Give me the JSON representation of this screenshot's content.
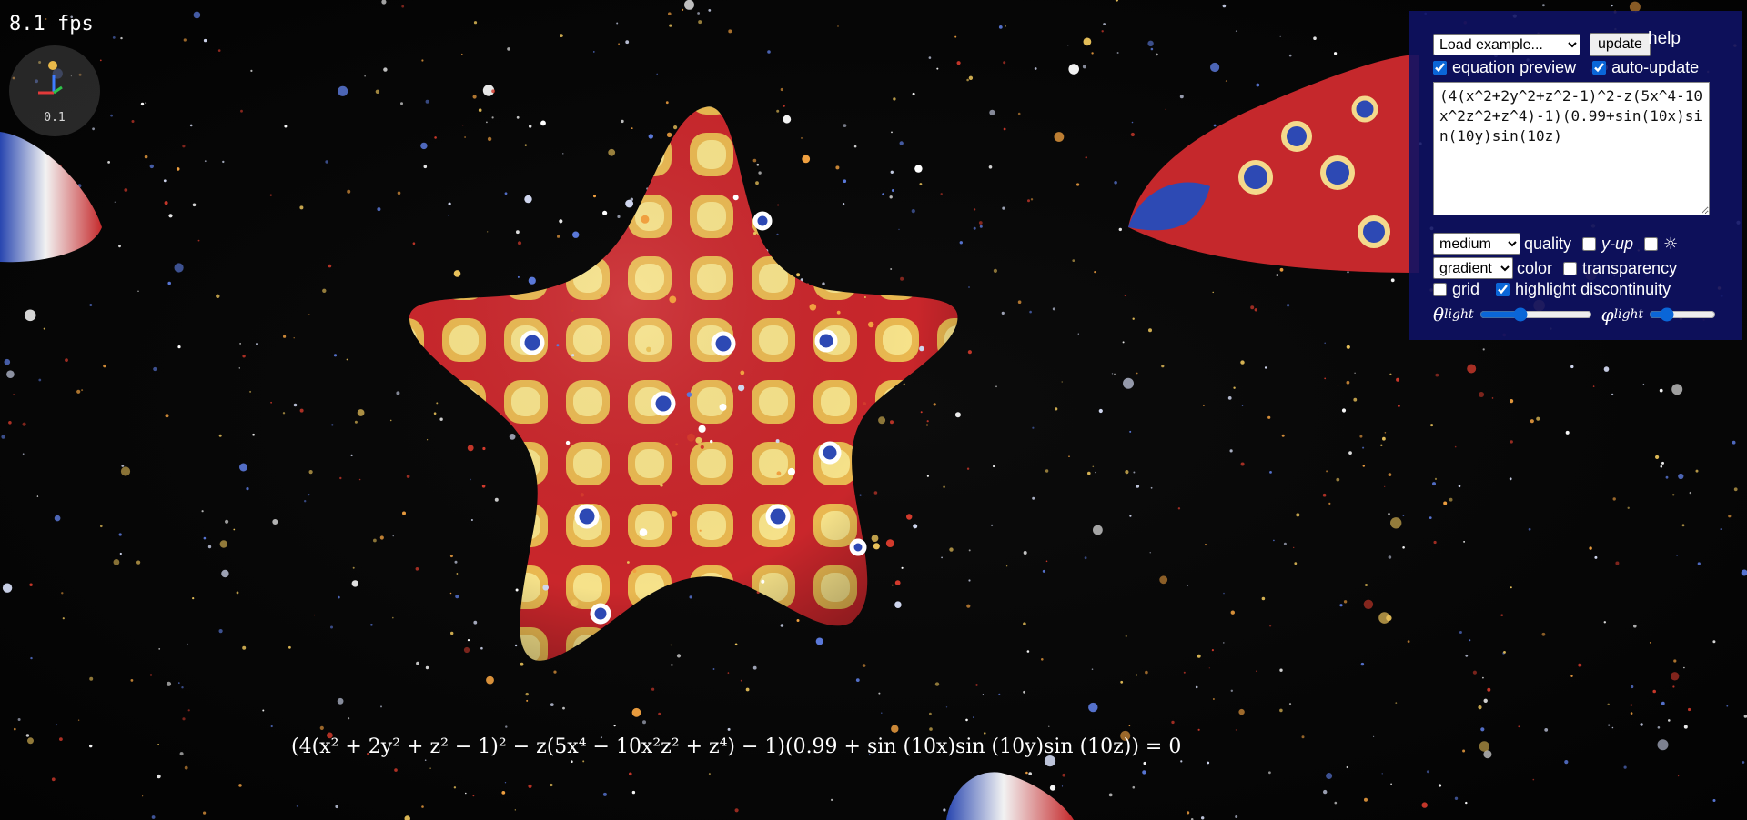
{
  "stats": {
    "fps_text": "8.1 fps"
  },
  "gizmo": {
    "scale_text": "0.1"
  },
  "controls": {
    "example_select": {
      "selected": "Load example..."
    },
    "update_label": "update",
    "help_label": "help",
    "equation_preview_label": "equation preview",
    "equation_preview_checked": true,
    "auto_update_label": "auto-update",
    "auto_update_checked": true,
    "equation": "(4(x^2+2y^2+z^2-1)^2-z(5x^4-10x^2z^2+z^4)-1)(0.99+sin(10x)sin(10y)sin(10z)",
    "quality_select": {
      "selected": "medium"
    },
    "quality_label": "quality",
    "y_up_label": "y-up",
    "y_up_checked": false,
    "light_toggle_label": "☼",
    "light_toggle_checked": false,
    "color_select": {
      "selected": "gradient"
    },
    "color_label": "color",
    "transparency_label": "transparency",
    "transparency_checked": false,
    "grid_label": "grid",
    "grid_checked": false,
    "highlight_discontinuity_label": "highlight discontinuity",
    "highlight_discontinuity_checked": true,
    "theta_light": {
      "symbol": "θ",
      "subscript": "light",
      "value": 0.35
    },
    "phi_light": {
      "symbol": "φ",
      "subscript": "light",
      "value": 0.2
    }
  },
  "equation_preview": "(4(x² + 2y² + z² − 1)² − z(5x⁴ − 10x²z² + z⁴) − 1)(0.99 + sin (10x)sin (10y)sin (10z)) = 0",
  "colors": {
    "panel_bg": "#0e1264",
    "surface_red": "#c8242a",
    "surface_yellow": "#f0d060",
    "surface_blue": "#2a44b0",
    "background": "#050505"
  }
}
